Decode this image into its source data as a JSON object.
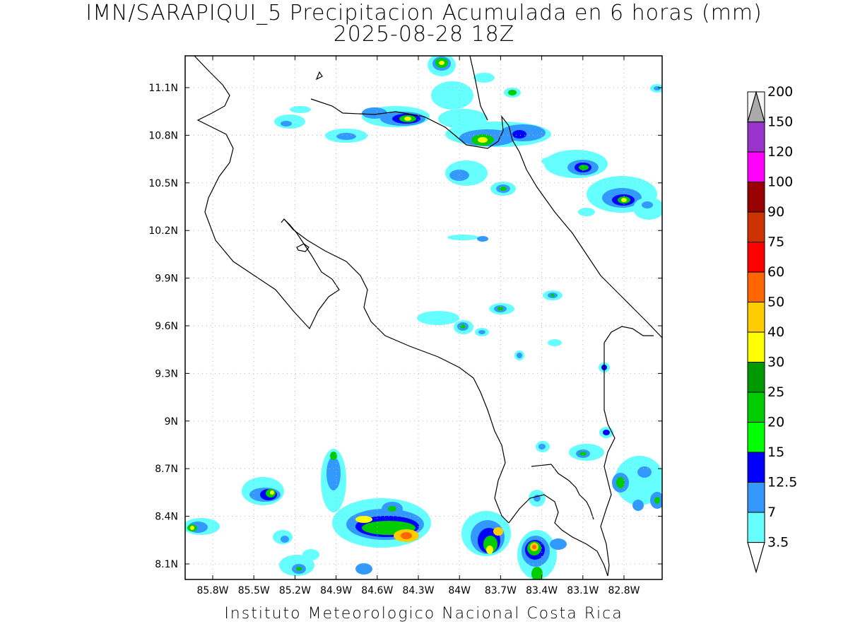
{
  "title": {
    "line1": "IMN/SARAPIQUI_5 Precipitacion Acumulada en 6 horas (mm)",
    "line2": "2025-08-28 18Z"
  },
  "footer": "Instituto Meteorologico Nacional Costa Rica",
  "map": {
    "lat_ticks": [
      "11.1N",
      "10.8N",
      "10.5N",
      "10.2N",
      "9.9N",
      "9.6N",
      "9.3N",
      "9N",
      "8.7N",
      "8.4N",
      "8.1N"
    ],
    "lon_ticks": [
      "85.8W",
      "85.5W",
      "85.2W",
      "84.9W",
      "84.6W",
      "84.3W",
      "84W",
      "83.7W",
      "83.4W",
      "83.1W",
      "82.8W"
    ],
    "gridlines": "dotted"
  },
  "colorbar": {
    "labels": [
      "3.5",
      "7",
      "12.5",
      "15",
      "20",
      "25",
      "30",
      "40",
      "50",
      "60",
      "75",
      "90",
      "100",
      "120",
      "150",
      "200"
    ],
    "colors": [
      "#66ffff",
      "#3399ff",
      "#0000ff",
      "#00ff00",
      "#00cc00",
      "#009900",
      "#ffff00",
      "#ffcc00",
      "#ff6600",
      "#ff0000",
      "#cc3300",
      "#990000",
      "#ff00ff",
      "#9933cc",
      "#f5f5f5",
      "#aaaaaa"
    ],
    "extend": "both"
  }
}
